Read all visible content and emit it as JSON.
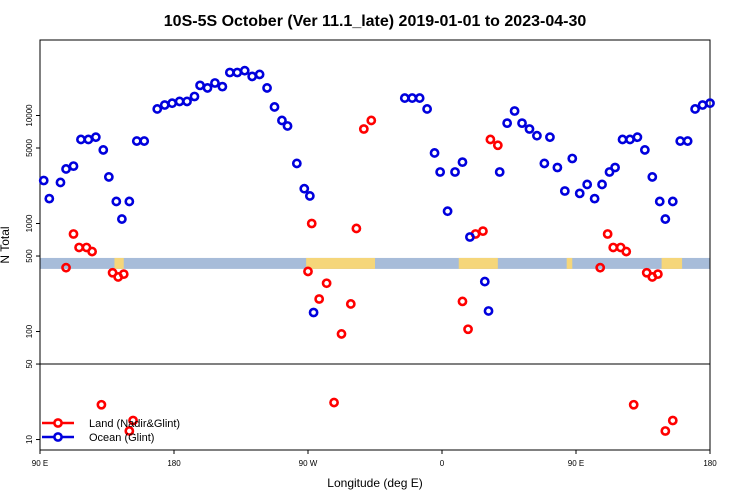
{
  "chart_data": {
    "type": "scatter",
    "title": "10S-5S October (Ver 11.1_late)   2019-01-01 to 2023-04-30",
    "xlabel": "Longitude (deg E)",
    "ylabel": "N Total",
    "x_range": [
      90,
      450
    ],
    "y_scale": "log",
    "y_range": [
      8,
      50000
    ],
    "x_ticks": [
      {
        "value": 90,
        "label": "90 E"
      },
      {
        "value": 162,
        "label": "180"
      },
      {
        "value": 234,
        "label": "90 W"
      },
      {
        "value": 306,
        "label": "0"
      },
      {
        "value": 378,
        "label": "90 E"
      },
      {
        "value": 450,
        "label": "180"
      }
    ],
    "y_ticks": [
      {
        "value": 10,
        "label": "10"
      },
      {
        "value": 50,
        "label": "50"
      },
      {
        "value": 100,
        "label": "100"
      },
      {
        "value": 500,
        "label": "500"
      },
      {
        "value": 1000,
        "label": "1000"
      },
      {
        "value": 5000,
        "label": "5000"
      },
      {
        "value": 10000,
        "label": "10000"
      }
    ],
    "separator_y": 50,
    "band": {
      "y_low": 380,
      "y_high": 480,
      "color": "#a7bcd9",
      "land_color": "#f5d67a"
    },
    "land_segments": [
      [
        130,
        135
      ],
      [
        233,
        270
      ],
      [
        315,
        336
      ],
      [
        373,
        376
      ],
      [
        424,
        435
      ]
    ],
    "grid": false,
    "legend": {
      "position": "bottom-left",
      "entries": [
        {
          "label": "Land (Nadir&Glint)",
          "color": "#ff0000"
        },
        {
          "label": "Ocean (Glint)",
          "color": "#0000dd"
        }
      ]
    },
    "series": [
      {
        "name": "Land (Nadir&Glint)",
        "color": "#ff0000",
        "points": [
          [
            104,
            390
          ],
          [
            108,
            800
          ],
          [
            111,
            600
          ],
          [
            115,
            600
          ],
          [
            118,
            550
          ],
          [
            123,
            21
          ],
          [
            129,
            350
          ],
          [
            132,
            320
          ],
          [
            135,
            340
          ],
          [
            138,
            12
          ],
          [
            140,
            15
          ],
          [
            234,
            360
          ],
          [
            236,
            1000
          ],
          [
            240,
            200
          ],
          [
            244,
            280
          ],
          [
            248,
            22
          ],
          [
            252,
            95
          ],
          [
            257,
            180
          ],
          [
            260,
            900
          ],
          [
            264,
            7500
          ],
          [
            268,
            9000
          ],
          [
            317,
            190
          ],
          [
            320,
            105
          ],
          [
            324,
            800
          ],
          [
            328,
            850
          ],
          [
            332,
            6000
          ],
          [
            336,
            5300
          ],
          [
            391,
            390
          ],
          [
            395,
            800
          ],
          [
            398,
            600
          ],
          [
            402,
            600
          ],
          [
            405,
            550
          ],
          [
            409,
            21
          ],
          [
            416,
            350
          ],
          [
            419,
            320
          ],
          [
            422,
            340
          ],
          [
            426,
            12
          ],
          [
            430,
            15
          ]
        ]
      },
      {
        "name": "Ocean (Glint)",
        "color": "#0000dd",
        "points": [
          [
            92,
            2500
          ],
          [
            95,
            1700
          ],
          [
            101,
            2400
          ],
          [
            104,
            3200
          ],
          [
            108,
            3400
          ],
          [
            112,
            6000
          ],
          [
            116,
            6000
          ],
          [
            120,
            6300
          ],
          [
            124,
            4800
          ],
          [
            127,
            2700
          ],
          [
            131,
            1600
          ],
          [
            134,
            1100
          ],
          [
            138,
            1600
          ],
          [
            142,
            5800
          ],
          [
            146,
            5800
          ],
          [
            153,
            11500
          ],
          [
            157,
            12500
          ],
          [
            161,
            13000
          ],
          [
            165,
            13500
          ],
          [
            169,
            13500
          ],
          [
            173,
            15000
          ],
          [
            176,
            19000
          ],
          [
            180,
            18000
          ],
          [
            184,
            20000
          ],
          [
            188,
            18500
          ],
          [
            192,
            25000
          ],
          [
            196,
            25000
          ],
          [
            200,
            26000
          ],
          [
            204,
            23000
          ],
          [
            208,
            24000
          ],
          [
            212,
            18000
          ],
          [
            216,
            12000
          ],
          [
            220,
            9000
          ],
          [
            223,
            8000
          ],
          [
            228,
            3600
          ],
          [
            232,
            2100
          ],
          [
            235,
            1800
          ],
          [
            237,
            150
          ],
          [
            286,
            14500
          ],
          [
            290,
            14500
          ],
          [
            294,
            14500
          ],
          [
            298,
            11500
          ],
          [
            302,
            4500
          ],
          [
            305,
            3000
          ],
          [
            309,
            1300
          ],
          [
            313,
            3000
          ],
          [
            317,
            3700
          ],
          [
            321,
            750
          ],
          [
            329,
            290
          ],
          [
            331,
            155
          ],
          [
            337,
            3000
          ],
          [
            341,
            8500
          ],
          [
            345,
            11000
          ],
          [
            349,
            8500
          ],
          [
            353,
            7500
          ],
          [
            357,
            6500
          ],
          [
            361,
            3600
          ],
          [
            364,
            6300
          ],
          [
            368,
            3300
          ],
          [
            372,
            2000
          ],
          [
            376,
            4000
          ],
          [
            380,
            1900
          ],
          [
            384,
            2300
          ],
          [
            388,
            1700
          ],
          [
            392,
            2300
          ],
          [
            396,
            3000
          ],
          [
            399,
            3300
          ],
          [
            403,
            6000
          ],
          [
            407,
            6000
          ],
          [
            411,
            6300
          ],
          [
            415,
            4800
          ],
          [
            419,
            2700
          ],
          [
            423,
            1600
          ],
          [
            426,
            1100
          ],
          [
            430,
            1600
          ],
          [
            434,
            5800
          ],
          [
            438,
            5800
          ],
          [
            442,
            11500
          ],
          [
            446,
            12500
          ],
          [
            450,
            13000
          ]
        ]
      }
    ]
  }
}
